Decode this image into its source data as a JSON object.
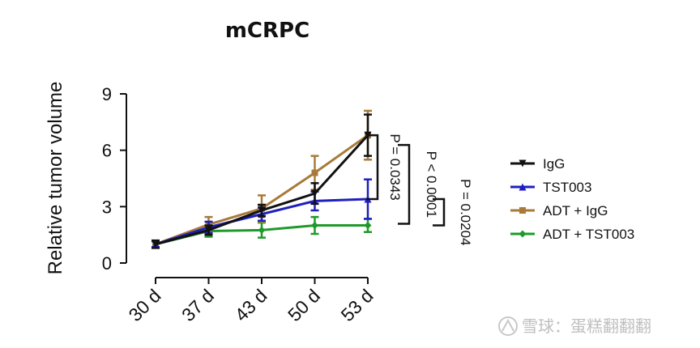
{
  "chart_data": {
    "type": "line",
    "title": "mCRPC",
    "ylabel": "Relative tumor volume",
    "xlabel": "",
    "categories": [
      "30 d",
      "37 d",
      "43 d",
      "50 d",
      "53 d"
    ],
    "yticks": [
      0,
      3,
      6,
      9
    ],
    "ylim": [
      0,
      9
    ],
    "legend_position": "right",
    "series": [
      {
        "name": "IgG",
        "color": "#111111",
        "marker": "triangle-down",
        "values": [
          1.0,
          1.75,
          2.8,
          3.7,
          6.8
        ],
        "errors": [
          0.2,
          0.25,
          0.3,
          0.55,
          1.1
        ]
      },
      {
        "name": "TST003",
        "color": "#1f1fbf",
        "marker": "triangle-up",
        "values": [
          1.0,
          1.9,
          2.6,
          3.3,
          3.4
        ],
        "errors": [
          0.15,
          0.3,
          0.35,
          0.5,
          1.05
        ]
      },
      {
        "name": "ADT + IgG",
        "color": "#a87a3a",
        "marker": "square",
        "values": [
          1.0,
          2.05,
          2.9,
          4.8,
          6.8
        ],
        "errors": [
          0.15,
          0.4,
          0.7,
          0.9,
          1.3
        ]
      },
      {
        "name": "ADT +  TST003",
        "color": "#1f9a2a",
        "marker": "diamond",
        "values": [
          1.0,
          1.7,
          1.75,
          2.0,
          2.0
        ],
        "errors": [
          0.15,
          0.3,
          0.4,
          0.45,
          0.35
        ]
      }
    ],
    "annotations": [
      {
        "label": "P = 0.0343",
        "from": "IgG",
        "to": "TST003"
      },
      {
        "label": "P < 0.0001",
        "from": "IgG",
        "to": "ADT +  TST003"
      },
      {
        "label": "P = 0.0204",
        "from": "TST003",
        "to": "ADT +  TST003"
      }
    ]
  },
  "watermark": "雪球：蛋糕翻翻翻"
}
